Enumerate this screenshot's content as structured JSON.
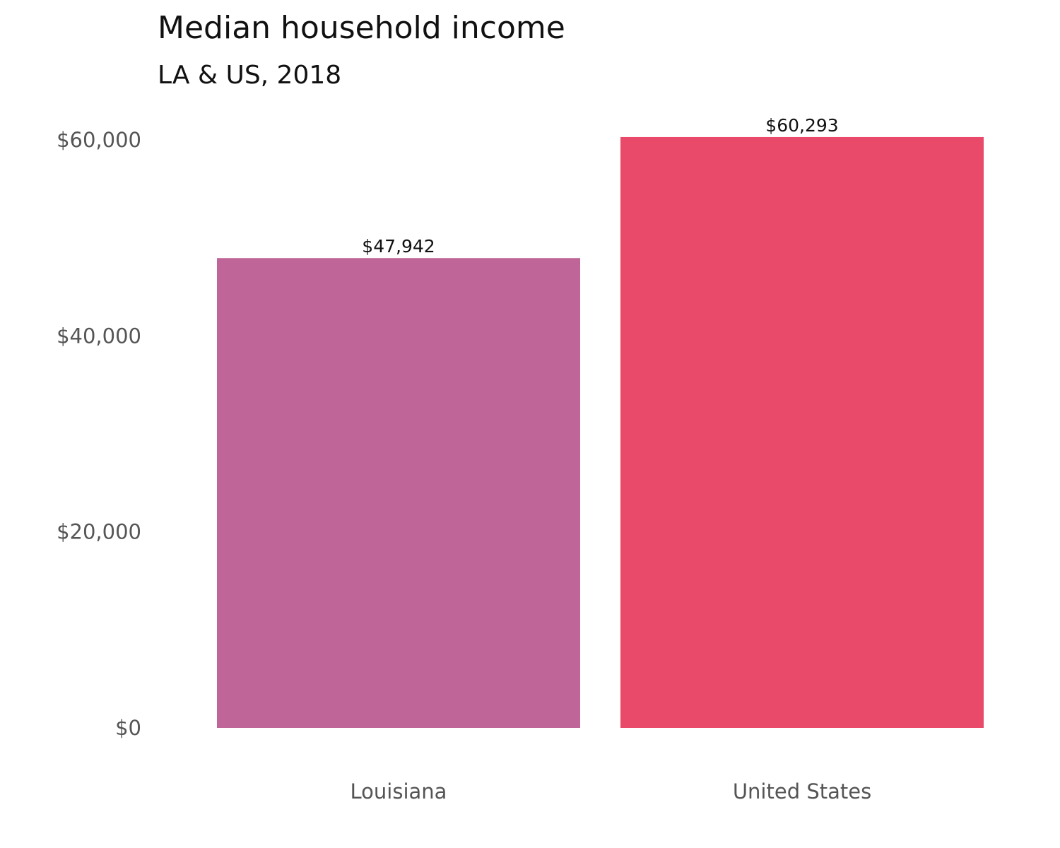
{
  "chart_data": {
    "type": "bar",
    "title": "Median household income",
    "subtitle": "LA & US, 2018",
    "xlabel": "",
    "ylabel": "",
    "categories": [
      "Louisiana",
      "United States"
    ],
    "values": [
      47942,
      60293
    ],
    "data_labels": [
      "$47,942",
      "$60,293"
    ],
    "colors": [
      "#BF6598",
      "#E94A69"
    ],
    "ylim": [
      0,
      60293
    ],
    "yticks": [
      0,
      20000,
      40000,
      60000
    ],
    "ytick_labels": [
      "$0",
      "$20,000",
      "$40,000",
      "$60,000"
    ],
    "grid": false,
    "legend": "none"
  }
}
